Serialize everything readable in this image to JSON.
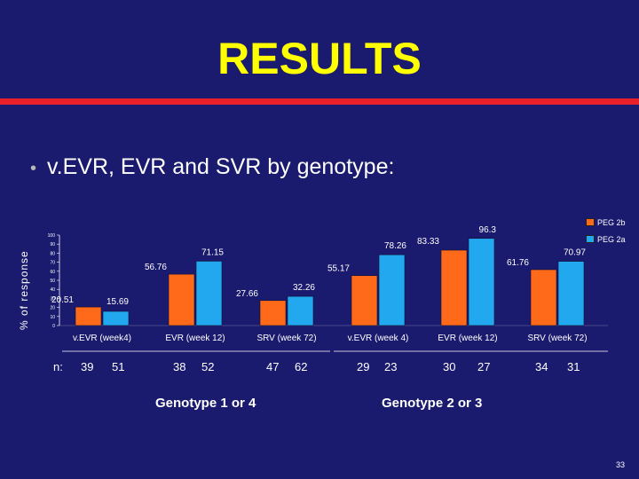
{
  "slide": {
    "title": "RESULTS",
    "bullet": "v.EVR, EVR and SVR by genotype:",
    "page_number": "33",
    "n_label": "n:"
  },
  "colors": {
    "background": "#1a1a6e",
    "title": "#ffff00",
    "accent_line": "#e8202a",
    "peg2b": "#ff6a1a",
    "peg2a": "#22a8ee"
  },
  "chart_data": {
    "type": "bar",
    "ylabel": "% of response",
    "ylim": [
      0,
      100
    ],
    "yticks": [
      "0",
      "10",
      "20",
      "30",
      "40",
      "50",
      "60",
      "70",
      "80",
      "90",
      "100"
    ],
    "legend": [
      "PEG 2b",
      "PEG 2a"
    ],
    "categories": [
      "v.EVR (week4)",
      "EVR (week 12)",
      "SRV (week 72)",
      "v.EVR (week 4)",
      "EVR (week 12)",
      "SRV (week 72)"
    ],
    "series": [
      {
        "name": "PEG 2b",
        "values": [
          20.51,
          56.76,
          27.66,
          55.17,
          83.33,
          61.76
        ],
        "labels": [
          "20.51",
          "56.76",
          "27.66",
          "55.17",
          "83.33",
          "61.76"
        ]
      },
      {
        "name": "PEG 2a",
        "values": [
          15.69,
          71.15,
          32.26,
          78.26,
          96.3,
          70.97
        ],
        "labels": [
          "15.69",
          "71.15",
          "32.26",
          "78.26",
          "96.3",
          "70.97"
        ]
      }
    ],
    "n": [
      [
        "39",
        "51"
      ],
      [
        "38",
        "52"
      ],
      [
        "47",
        "62"
      ],
      [
        "29",
        "23"
      ],
      [
        "30",
        "27"
      ],
      [
        "34",
        "31"
      ]
    ],
    "groups": [
      "Genotype 1 or 4",
      "Genotype 2 or 3"
    ]
  }
}
